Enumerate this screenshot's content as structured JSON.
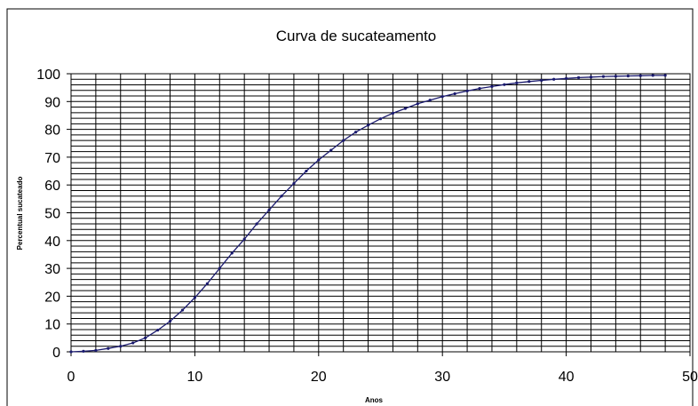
{
  "chart_data": {
    "type": "line",
    "title": "Curva de sucateamento",
    "xlabel": "Anos",
    "ylabel": "Percentual sucateado",
    "xlim": [
      0,
      50
    ],
    "ylim": [
      0,
      100
    ],
    "x_ticks": [
      "0",
      "10",
      "20",
      "30",
      "40",
      "50"
    ],
    "y_ticks": [
      "0",
      "10",
      "20",
      "30",
      "40",
      "50",
      "60",
      "70",
      "80",
      "90",
      "100"
    ],
    "grid": true,
    "legend": "none",
    "series": [
      {
        "color": "#1a1a6e",
        "x": [
          0,
          1,
          2,
          3,
          4,
          5,
          6,
          7,
          8,
          9,
          10,
          11,
          12,
          13,
          14,
          15,
          16,
          17,
          18,
          19,
          20,
          21,
          22,
          23,
          24,
          25,
          26,
          27,
          28,
          29,
          30,
          31,
          32,
          33,
          34,
          35,
          36,
          37,
          38,
          39,
          40,
          41,
          42,
          43,
          44,
          45,
          46,
          47,
          48
        ],
        "y": [
          0,
          0.2,
          0.5,
          1.2,
          2,
          3.2,
          5,
          7.8,
          11,
          15,
          19.5,
          24.5,
          30,
          35.5,
          40.5,
          46,
          51,
          56,
          60.5,
          65,
          69,
          72.5,
          76,
          79,
          81.5,
          83.8,
          85.8,
          87.5,
          89.2,
          90.5,
          91.8,
          92.8,
          93.8,
          94.7,
          95.4,
          96.1,
          96.7,
          97.2,
          97.6,
          98,
          98.3,
          98.6,
          98.8,
          99,
          99.1,
          99.2,
          99.3,
          99.4,
          99.4
        ]
      }
    ]
  }
}
